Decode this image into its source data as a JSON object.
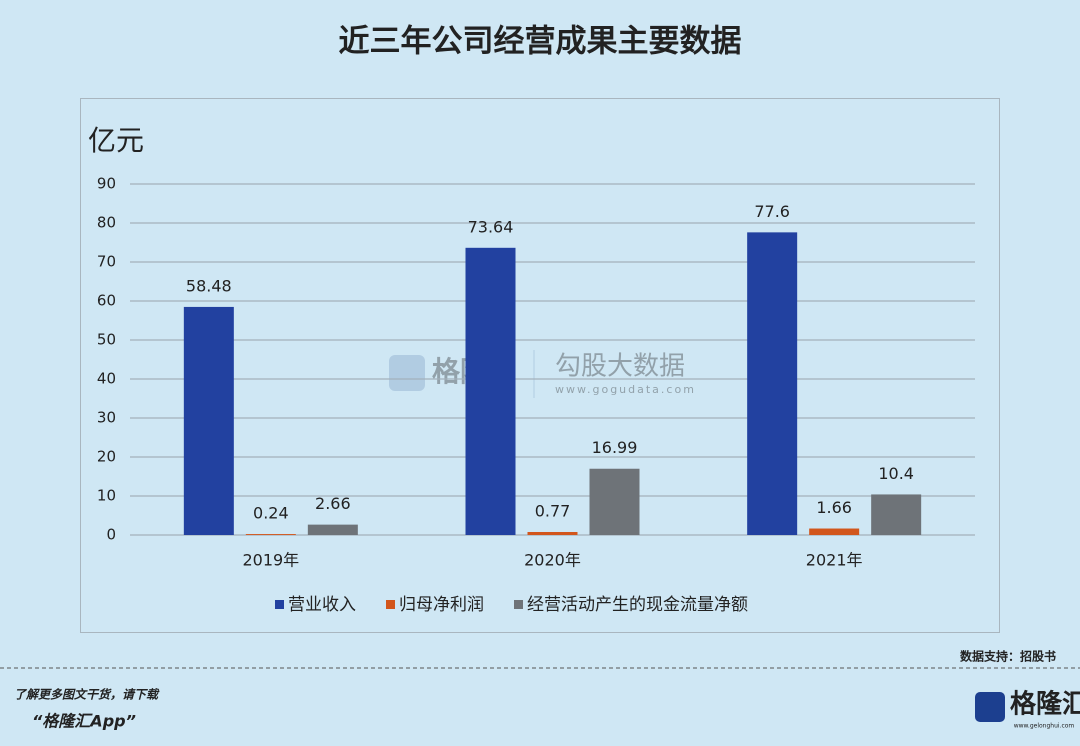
{
  "chart_data": {
    "type": "bar",
    "title": "近三年公司经营成果主要数据",
    "y_label": "亿元",
    "categories": [
      "2019年",
      "2020年",
      "2021年"
    ],
    "series": [
      {
        "name": "营业收入",
        "color": "#2241a0",
        "values": [
          58.48,
          73.64,
          77.6
        ]
      },
      {
        "name": "归母净利润",
        "color": "#d2561c",
        "values": [
          0.24,
          0.77,
          1.66
        ]
      },
      {
        "name": "经营活动产生的现金流量净额",
        "color": "#6e7378",
        "values": [
          2.66,
          16.99,
          10.4
        ]
      }
    ],
    "ylim": [
      0,
      90
    ],
    "yticks": [
      0,
      10,
      20,
      30,
      40,
      50,
      60,
      70,
      80,
      90
    ],
    "grid": true,
    "legend": "bottom"
  },
  "watermark": {
    "brand": "格隆汇",
    "product": "勾股大数据",
    "url": "www.gogudata.com"
  },
  "source": "数据支持：招股书",
  "footer": {
    "prompt": "了解更多图文干货，请下载",
    "app": "“格隆汇App”",
    "logo": "格隆汇",
    "logo_url": "www.gelonghui.com"
  }
}
